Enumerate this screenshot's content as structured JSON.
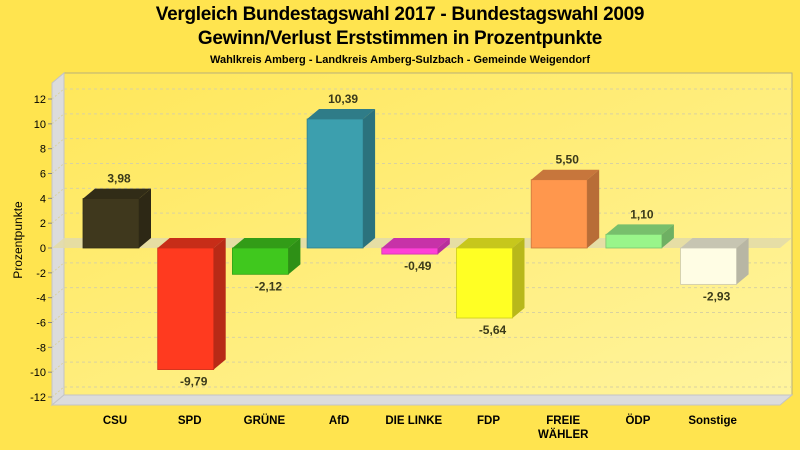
{
  "chart_data": {
    "type": "bar",
    "title": "Vergleich Bundestagswahl 2017 - Bundestagswahl 2009",
    "subtitle": "Gewinn/Verlust Erststimmen in Prozentpunkte",
    "subsubtitle": "Wahlkreis Amberg - Landkreis Amberg-Sulzbach - Gemeinde Weigendorf",
    "xlabel": "",
    "ylabel": "Prozentpunkte",
    "ylim": [
      -12,
      12
    ],
    "yticks": [
      "12",
      "10",
      "8",
      "6",
      "4",
      "2",
      "0",
      "-2",
      "-4",
      "-6",
      "-8",
      "-10",
      "-12"
    ],
    "ytick_values": [
      12,
      10,
      8,
      6,
      4,
      2,
      0,
      -2,
      -4,
      -6,
      -8,
      -10,
      -12
    ],
    "grid": true,
    "categories": [
      {
        "label": [
          "CSU"
        ]
      },
      {
        "label": [
          "SPD"
        ]
      },
      {
        "label": [
          "GRÜNE"
        ]
      },
      {
        "label": [
          "AfD"
        ]
      },
      {
        "label": [
          "DIE LINKE"
        ]
      },
      {
        "label": [
          "FDP"
        ]
      },
      {
        "label": [
          "FREIE",
          "WÄHLER"
        ]
      },
      {
        "label": [
          "ÖDP"
        ]
      },
      {
        "label": [
          "Sonstige"
        ]
      }
    ],
    "values": [
      3.98,
      -9.79,
      -2.12,
      10.39,
      -0.49,
      -5.64,
      5.5,
      1.1,
      -2.93
    ],
    "value_labels": [
      "3,98",
      "-9,79",
      "-2,12",
      "10,39",
      "-0,49",
      "-5,64",
      "5,50",
      "1,10",
      "-2,93"
    ],
    "colors": [
      "#3f381d",
      "#ff3a1f",
      "#40c81e",
      "#3c9fae",
      "#ff40d8",
      "#ffff24",
      "#ff974d",
      "#99f58a",
      "#fffde4"
    ]
  }
}
